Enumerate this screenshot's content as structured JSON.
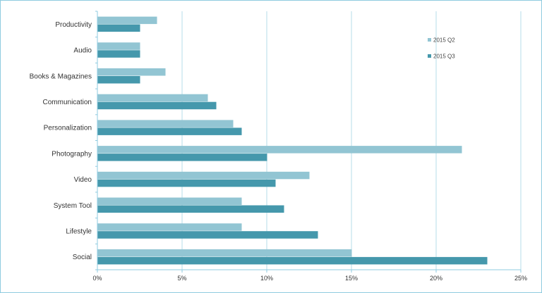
{
  "chart_data": {
    "type": "bar",
    "orientation": "horizontal",
    "categories": [
      "Productivity",
      "Audio",
      "Books & Magazines",
      "Communication",
      "Personalization",
      "Photography",
      "Video",
      "System Tool",
      "Lifestyle",
      "Social"
    ],
    "series": [
      {
        "name": "2015 Q2",
        "color": "#92c5d3",
        "values": [
          3.5,
          2.5,
          4.0,
          6.5,
          8.0,
          21.5,
          12.5,
          8.5,
          8.5,
          15.0
        ]
      },
      {
        "name": "2015 Q3",
        "color": "#4598ac",
        "values": [
          2.5,
          2.5,
          2.5,
          7.0,
          8.5,
          10.0,
          10.5,
          11.0,
          13.0,
          23.0
        ]
      }
    ],
    "xlim": [
      0,
      25
    ],
    "xticks": [
      0,
      5,
      10,
      15,
      20,
      25
    ],
    "xtick_labels": [
      "0%",
      "5%",
      "10%",
      "15%",
      "20%",
      "25%"
    ],
    "grid": true,
    "legend_position": "top-right",
    "title": "",
    "xlabel": "",
    "ylabel": ""
  }
}
